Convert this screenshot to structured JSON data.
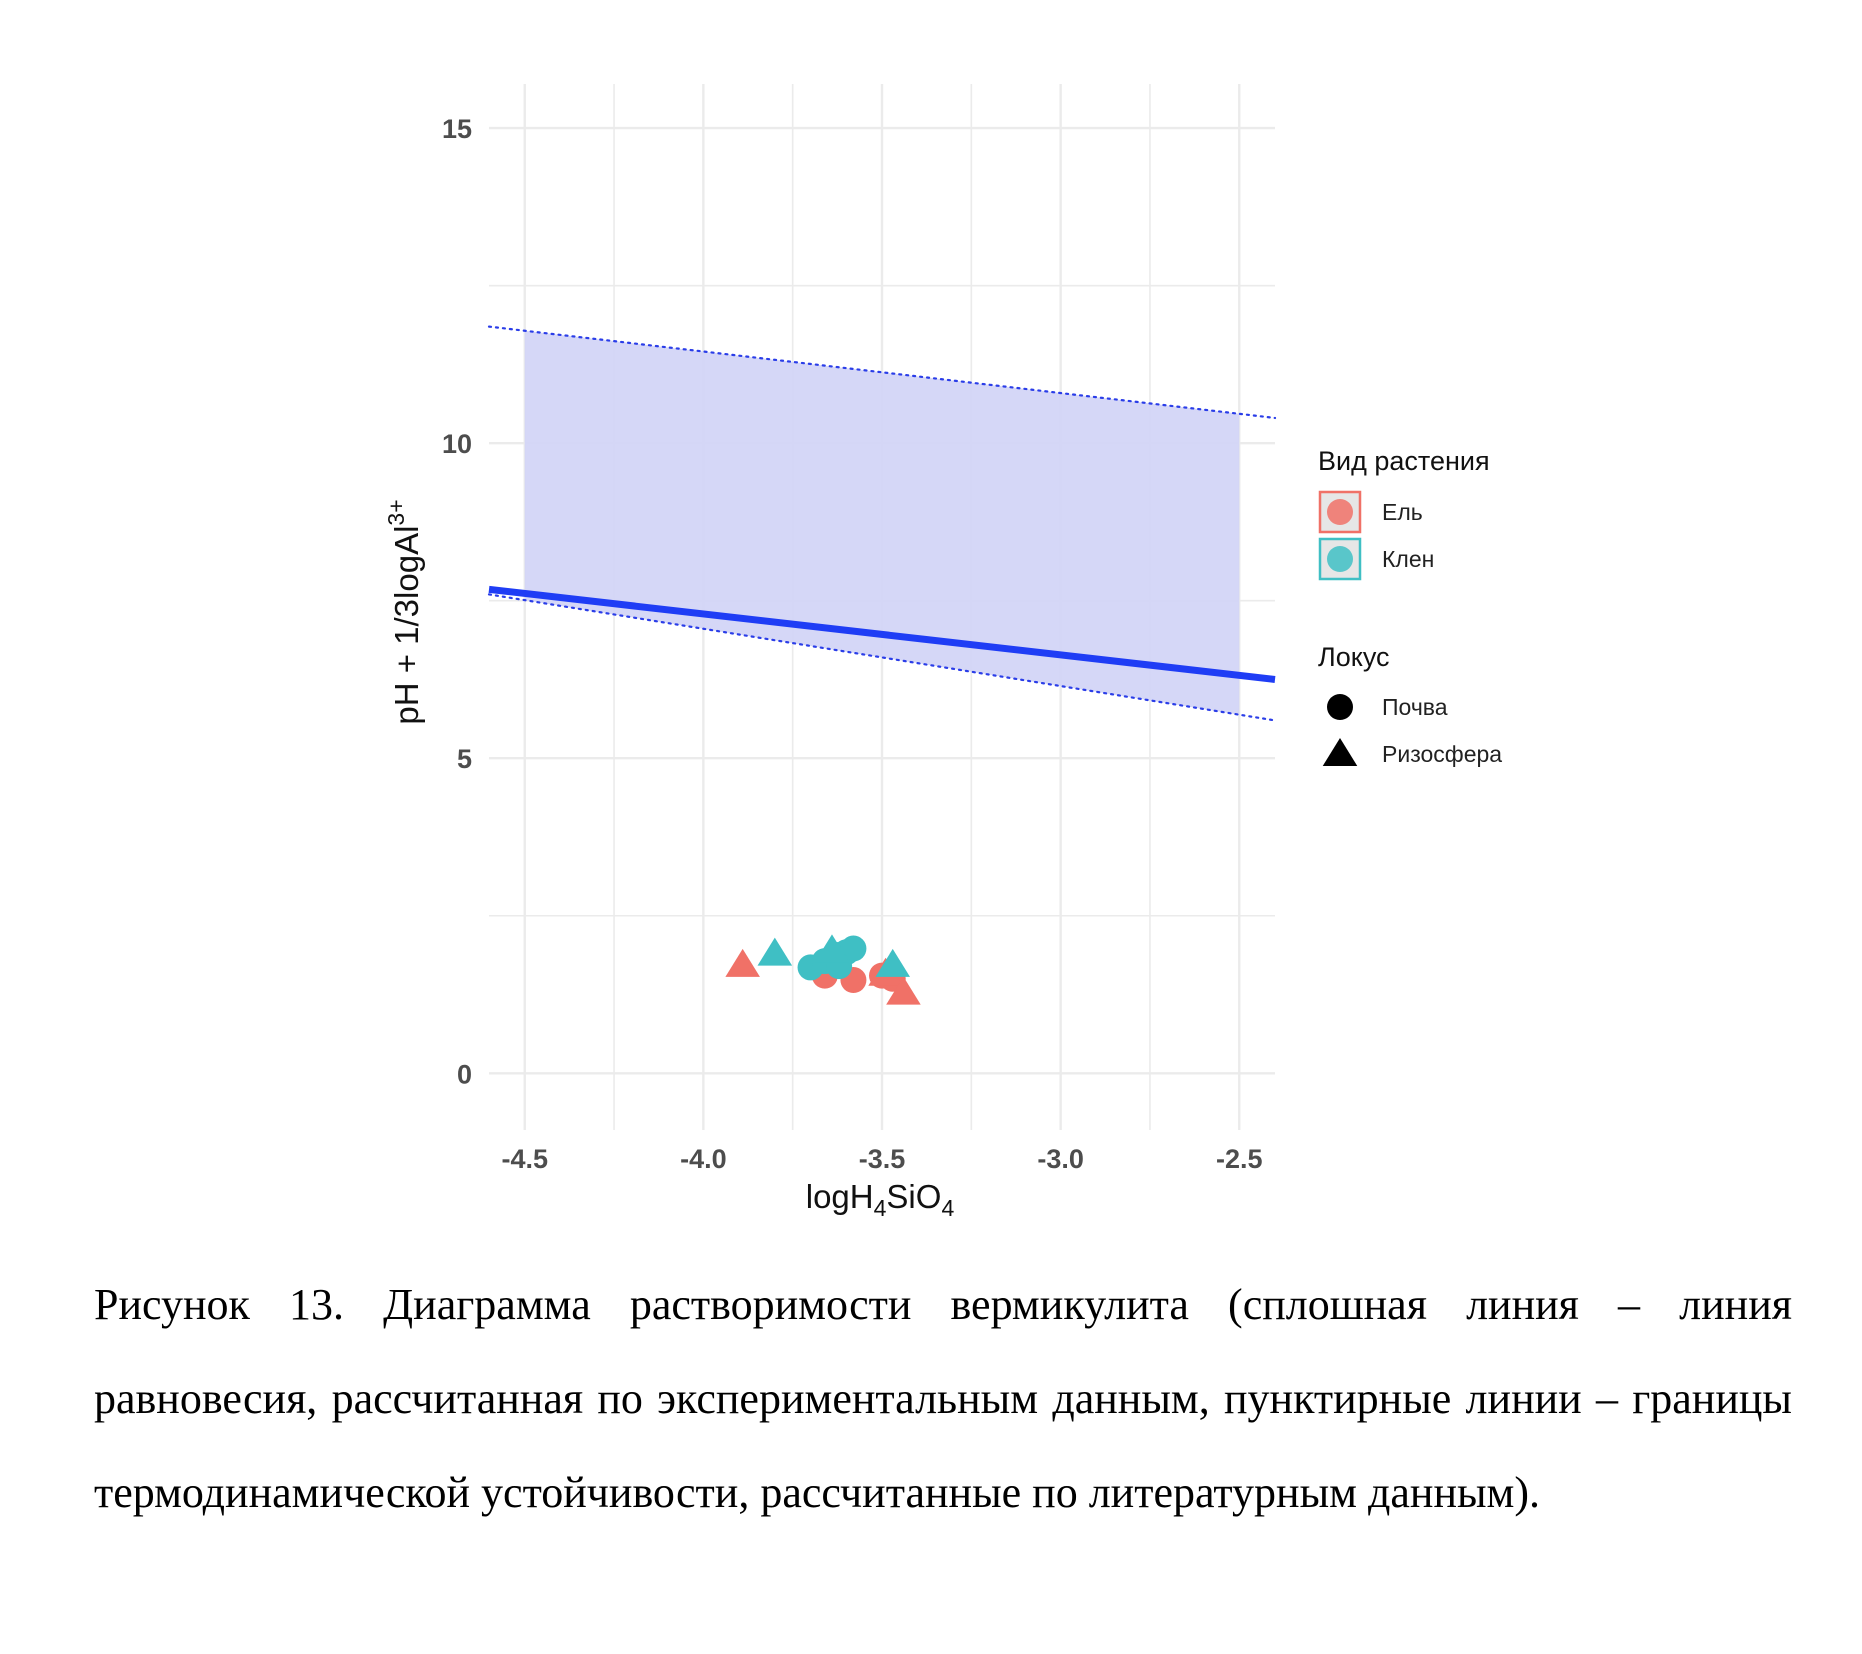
{
  "chart_data": {
    "type": "scatter",
    "title": "",
    "xlabel": {
      "base": "logH",
      "sub1": "4",
      "mid": "SiO",
      "sub2": "4"
    },
    "ylabel": {
      "base": "pH + 1/3logAl",
      "sup": "3+"
    },
    "xlim": [
      -4.6,
      -2.4
    ],
    "ylim": [
      -0.9,
      15.7
    ],
    "x_ticks": [
      -4.5,
      -4.0,
      -3.5,
      -3.0,
      -2.5
    ],
    "x_tick_labels": [
      "-4.5",
      "-4.0",
      "-3.5",
      "-3.0",
      "-2.5"
    ],
    "y_ticks": [
      0,
      5,
      10,
      15
    ],
    "y_tick_labels": [
      "0",
      "5",
      "10",
      "15"
    ],
    "grid": true,
    "legend_position": "right",
    "colors": {
      "spruce": "#F07167",
      "maple": "#3FBFC4",
      "band_fill": "#D3D5F7",
      "equilibrium_line": "#1F3DF5",
      "boundary_line": "#2A3DE8",
      "grid": "#EBEBEB"
    },
    "stability_band": {
      "x_start": -4.5,
      "x_end": -2.5,
      "upper": {
        "x": [
          -4.6,
          -2.4
        ],
        "y": [
          11.85,
          10.4
        ]
      },
      "lower": {
        "x": [
          -4.6,
          -2.4
        ],
        "y": [
          7.6,
          5.6
        ]
      }
    },
    "equilibrium_line": {
      "x": [
        -4.6,
        -2.4
      ],
      "y": [
        7.68,
        6.25
      ]
    },
    "series": [
      {
        "species": "Ель",
        "locus": "Почва",
        "shape": "circle",
        "x": [
          -3.66,
          -3.58,
          -3.5,
          -3.47
        ],
        "y": [
          1.55,
          1.48,
          1.55,
          1.5
        ]
      },
      {
        "species": "Ель",
        "locus": "Ризосфера",
        "shape": "triangle",
        "x": [
          -3.89,
          -3.49,
          -3.44
        ],
        "y": [
          1.72,
          1.58,
          1.28
        ]
      },
      {
        "species": "Клен",
        "locus": "Почва",
        "shape": "circle",
        "x": [
          -3.7,
          -3.66,
          -3.63,
          -3.6,
          -3.58,
          -3.62
        ],
        "y": [
          1.68,
          1.78,
          1.88,
          1.92,
          1.98,
          1.7
        ]
      },
      {
        "species": "Клен",
        "locus": "Ризосфера",
        "shape": "triangle",
        "x": [
          -3.8,
          -3.64,
          -3.47
        ],
        "y": [
          1.9,
          1.95,
          1.72
        ]
      }
    ],
    "legend": {
      "species_title": "Вид растения",
      "species_items": [
        {
          "label": "Ель",
          "color_key": "spruce"
        },
        {
          "label": "Клен",
          "color_key": "maple"
        }
      ],
      "locus_title": "Локус",
      "locus_items": [
        {
          "label": "Почва",
          "shape": "circle"
        },
        {
          "label": "Ризосфера",
          "shape": "triangle"
        }
      ]
    }
  },
  "caption": "Рисунок 13. Диаграмма растворимости вермикулита (сплошная линия – линия равновесия, рассчитанная по экспериментальным данным, пунктирные линии – границы термодинамической устойчивости, рассчитанные по литературным данным)."
}
